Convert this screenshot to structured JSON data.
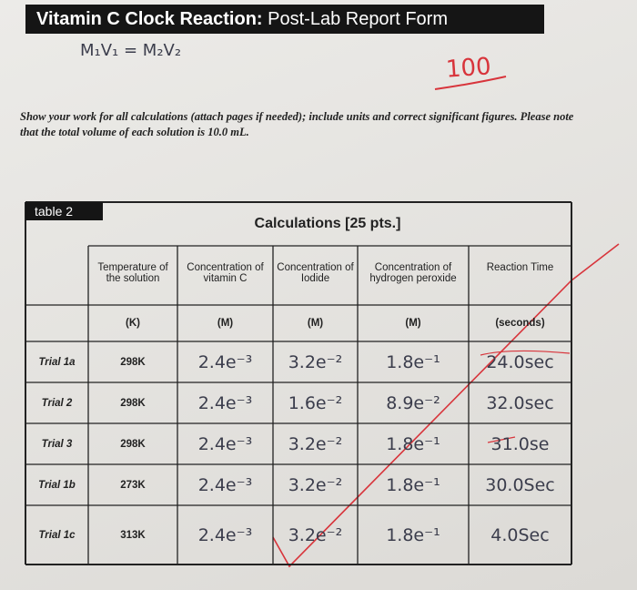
{
  "header": {
    "title_bold": "Vitamin C Clock Reaction:",
    "title_rest": "Post-Lab Report Form"
  },
  "handwriting": {
    "equation": "M₁V₁ = M₂V₂",
    "score": "100"
  },
  "instructions": "Show your work for all calculations (attach pages if needed); include units and correct significant figures. Please note that the total volume of each solution is 10.0 mL.",
  "table": {
    "label": "table 2",
    "title": "Calculations [25 pts.]",
    "columns": [
      "Temperature of the solution",
      "Concentration of vitamin C",
      "Concentration of Iodide",
      "Concentration of hydrogen peroxide",
      "Reaction Time"
    ],
    "units": [
      "(K)",
      "(M)",
      "(M)",
      "(M)",
      "(seconds)"
    ],
    "rows": [
      [
        "Trial 1a",
        "298K",
        "2.4e⁻³",
        "3.2e⁻²",
        "1.8e⁻¹",
        "24.0sec"
      ],
      [
        "Trial 2",
        "298K",
        "2.4e⁻³",
        "1.6e⁻²",
        "8.9e⁻²",
        "32.0sec"
      ],
      [
        "Trial 3",
        "298K",
        "2.4e⁻³",
        "3.2e⁻²",
        "1.8e⁻¹",
        "31.0se"
      ],
      [
        "Trial 1b",
        "273K",
        "2.4e⁻³",
        "3.2e⁻²",
        "1.8e⁻¹",
        "30.0Sec"
      ],
      [
        "Trial 1c",
        "313K",
        "2.4e⁻³",
        "3.2e⁻²",
        "1.8e⁻¹",
        "4.0Sec"
      ]
    ]
  }
}
